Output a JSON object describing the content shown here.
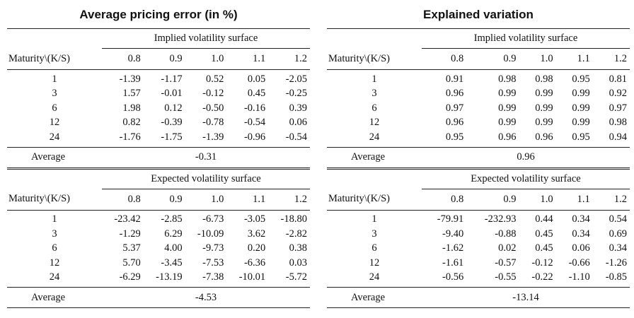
{
  "left": {
    "title": "Average pricing error (in %)",
    "blocks": [
      {
        "surface": "Implied volatility surface",
        "header": "Maturity\\(K/S)",
        "k": [
          "0.8",
          "0.9",
          "1.0",
          "1.1",
          "1.2"
        ],
        "rows": [
          {
            "m": "1",
            "v": [
              "-1.39",
              "-1.17",
              "0.52",
              "0.05",
              "-2.05"
            ]
          },
          {
            "m": "3",
            "v": [
              "1.57",
              "-0.01",
              "-0.12",
              "0.45",
              "-0.25"
            ]
          },
          {
            "m": "6",
            "v": [
              "1.98",
              "0.12",
              "-0.50",
              "-0.16",
              "0.39"
            ]
          },
          {
            "m": "12",
            "v": [
              "0.82",
              "-0.39",
              "-0.78",
              "-0.54",
              "0.06"
            ]
          },
          {
            "m": "24",
            "v": [
              "-1.76",
              "-1.75",
              "-1.39",
              "-0.96",
              "-0.54"
            ]
          }
        ],
        "avg_label": "Average",
        "avg_value": "-0.31"
      },
      {
        "surface": "Expected volatility surface",
        "header": "Maturity\\(K/S)",
        "k": [
          "0.8",
          "0.9",
          "1.0",
          "1.1",
          "1.2"
        ],
        "rows": [
          {
            "m": "1",
            "v": [
              "-23.42",
              "-2.85",
              "-6.73",
              "-3.05",
              "-18.80"
            ]
          },
          {
            "m": "3",
            "v": [
              "-1.29",
              "6.29",
              "-10.09",
              "3.62",
              "-2.82"
            ]
          },
          {
            "m": "6",
            "v": [
              "5.37",
              "4.00",
              "-9.73",
              "0.20",
              "0.38"
            ]
          },
          {
            "m": "12",
            "v": [
              "5.70",
              "-3.45",
              "-7.53",
              "-6.36",
              "0.03"
            ]
          },
          {
            "m": "24",
            "v": [
              "-6.29",
              "-13.19",
              "-7.38",
              "-10.01",
              "-5.72"
            ]
          }
        ],
        "avg_label": "Average",
        "avg_value": "-4.53"
      }
    ]
  },
  "right": {
    "title": "Explained variation",
    "blocks": [
      {
        "surface": "Implied volatility surface",
        "header": "Maturity\\(K/S)",
        "k": [
          "0.8",
          "0.9",
          "1.0",
          "1.1",
          "1.2"
        ],
        "rows": [
          {
            "m": "1",
            "v": [
              "0.91",
              "0.98",
              "0.98",
              "0.95",
              "0.81"
            ]
          },
          {
            "m": "3",
            "v": [
              "0.96",
              "0.99",
              "0.99",
              "0.99",
              "0.92"
            ]
          },
          {
            "m": "6",
            "v": [
              "0.97",
              "0.99",
              "0.99",
              "0.99",
              "0.97"
            ]
          },
          {
            "m": "12",
            "v": [
              "0.96",
              "0.99",
              "0.99",
              "0.99",
              "0.98"
            ]
          },
          {
            "m": "24",
            "v": [
              "0.95",
              "0.96",
              "0.96",
              "0.95",
              "0.94"
            ]
          }
        ],
        "avg_label": "Average",
        "avg_value": "0.96"
      },
      {
        "surface": "Expected volatility surface",
        "header": "Maturity\\(K/S)",
        "k": [
          "0.8",
          "0.9",
          "1.0",
          "1.1",
          "1.2"
        ],
        "rows": [
          {
            "m": "1",
            "v": [
              "-79.91",
              "-232.93",
              "0.44",
              "0.34",
              "0.54"
            ]
          },
          {
            "m": "3",
            "v": [
              "-9.40",
              "-0.88",
              "0.45",
              "0.34",
              "0.69"
            ]
          },
          {
            "m": "6",
            "v": [
              "-1.62",
              "0.02",
              "0.45",
              "0.06",
              "0.34"
            ]
          },
          {
            "m": "12",
            "v": [
              "-1.61",
              "-0.57",
              "-0.12",
              "-0.66",
              "-1.26"
            ]
          },
          {
            "m": "24",
            "v": [
              "-0.56",
              "-0.55",
              "-0.22",
              "-1.10",
              "-0.85"
            ]
          }
        ],
        "avg_label": "Average",
        "avg_value": "-13.14"
      }
    ]
  }
}
